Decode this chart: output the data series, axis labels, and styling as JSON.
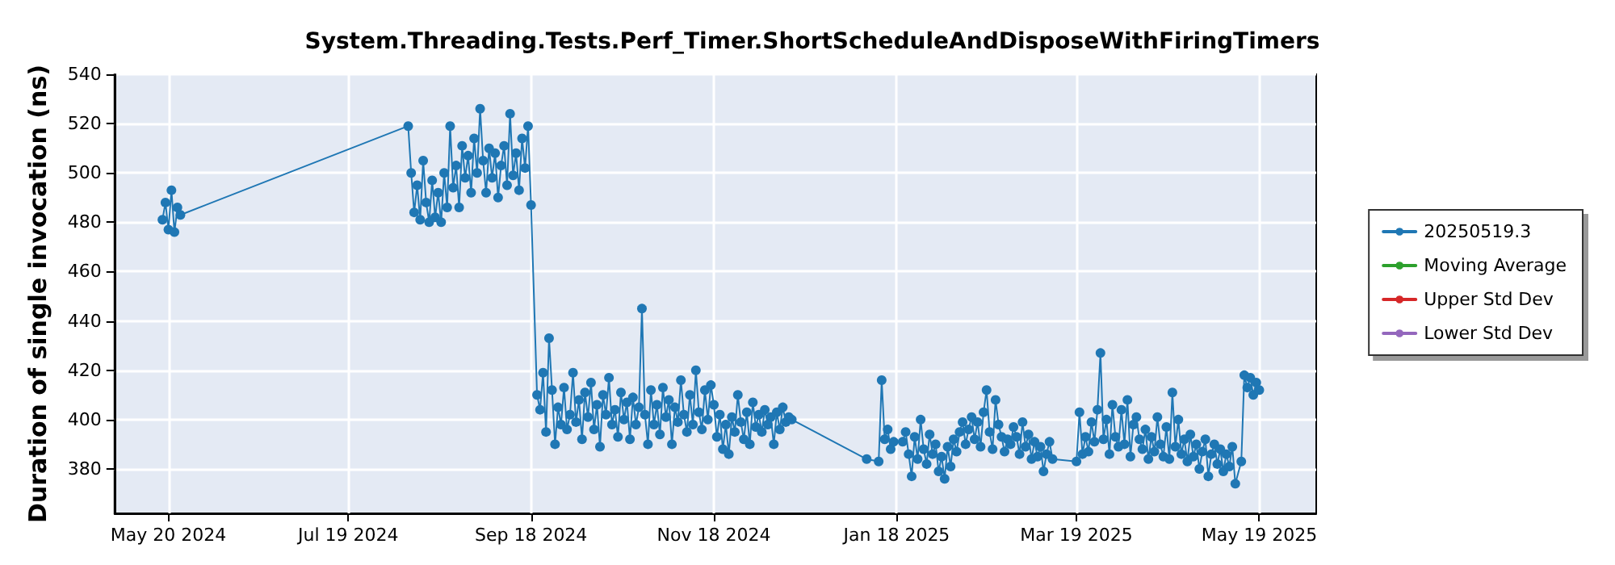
{
  "chart_data": {
    "type": "line",
    "title": "System.Threading.Tests.Perf_Timer.ShortScheduleAndDisposeWithFiringTimers",
    "ylabel": "Duration of single invocation (ns)",
    "series": [
      {
        "name": "20250519.3",
        "color": "#1f77b4",
        "x": [
          "2024-05-18",
          "2024-05-19",
          "2024-05-20",
          "2024-05-21",
          "2024-05-22",
          "2024-05-23",
          "2024-05-24",
          "2024-08-08",
          "2024-08-09",
          "2024-08-10",
          "2024-08-11",
          "2024-08-12",
          "2024-08-13",
          "2024-08-14",
          "2024-08-15",
          "2024-08-16",
          "2024-08-17",
          "2024-08-18",
          "2024-08-19",
          "2024-08-20",
          "2024-08-21",
          "2024-08-22",
          "2024-08-23",
          "2024-08-24",
          "2024-08-25",
          "2024-08-26",
          "2024-08-27",
          "2024-08-28",
          "2024-08-29",
          "2024-08-30",
          "2024-08-31",
          "2024-09-01",
          "2024-09-02",
          "2024-09-03",
          "2024-09-04",
          "2024-09-05",
          "2024-09-06",
          "2024-09-07",
          "2024-09-08",
          "2024-09-09",
          "2024-09-10",
          "2024-09-11",
          "2024-09-12",
          "2024-09-13",
          "2024-09-14",
          "2024-09-15",
          "2024-09-16",
          "2024-09-17",
          "2024-09-18",
          "2024-09-20",
          "2024-09-21",
          "2024-09-22",
          "2024-09-23",
          "2024-09-24",
          "2024-09-25",
          "2024-09-26",
          "2024-09-27",
          "2024-09-28",
          "2024-09-29",
          "2024-09-30",
          "2024-10-01",
          "2024-10-02",
          "2024-10-03",
          "2024-10-04",
          "2024-10-05",
          "2024-10-06",
          "2024-10-07",
          "2024-10-08",
          "2024-10-09",
          "2024-10-10",
          "2024-10-11",
          "2024-10-12",
          "2024-10-13",
          "2024-10-14",
          "2024-10-15",
          "2024-10-16",
          "2024-10-17",
          "2024-10-18",
          "2024-10-19",
          "2024-10-20",
          "2024-10-21",
          "2024-10-22",
          "2024-10-23",
          "2024-10-24",
          "2024-10-25",
          "2024-10-26",
          "2024-10-27",
          "2024-10-28",
          "2024-10-29",
          "2024-10-30",
          "2024-10-31",
          "2024-11-01",
          "2024-11-02",
          "2024-11-03",
          "2024-11-04",
          "2024-11-05",
          "2024-11-06",
          "2024-11-07",
          "2024-11-08",
          "2024-11-09",
          "2024-11-10",
          "2024-11-11",
          "2024-11-12",
          "2024-11-13",
          "2024-11-14",
          "2024-11-15",
          "2024-11-16",
          "2024-11-17",
          "2024-11-18",
          "2024-11-19",
          "2024-11-20",
          "2024-11-21",
          "2024-11-22",
          "2024-11-23",
          "2024-11-24",
          "2024-11-25",
          "2024-11-26",
          "2024-11-27",
          "2024-11-28",
          "2024-11-29",
          "2024-11-30",
          "2024-12-01",
          "2024-12-02",
          "2024-12-03",
          "2024-12-04",
          "2024-12-05",
          "2024-12-06",
          "2024-12-07",
          "2024-12-08",
          "2024-12-09",
          "2024-12-10",
          "2024-12-11",
          "2024-12-12",
          "2024-12-13",
          "2024-12-14",
          "2025-01-08",
          "2025-01-12",
          "2025-01-13",
          "2025-01-14",
          "2025-01-15",
          "2025-01-16",
          "2025-01-17",
          "2025-01-20",
          "2025-01-21",
          "2025-01-22",
          "2025-01-23",
          "2025-01-24",
          "2025-01-25",
          "2025-01-26",
          "2025-01-27",
          "2025-01-28",
          "2025-01-29",
          "2025-01-30",
          "2025-01-31",
          "2025-02-01",
          "2025-02-02",
          "2025-02-03",
          "2025-02-04",
          "2025-02-05",
          "2025-02-06",
          "2025-02-07",
          "2025-02-08",
          "2025-02-09",
          "2025-02-10",
          "2025-02-11",
          "2025-02-12",
          "2025-02-13",
          "2025-02-14",
          "2025-02-15",
          "2025-02-16",
          "2025-02-17",
          "2025-02-18",
          "2025-02-19",
          "2025-02-20",
          "2025-02-21",
          "2025-02-22",
          "2025-02-23",
          "2025-02-24",
          "2025-02-25",
          "2025-02-26",
          "2025-02-27",
          "2025-02-28",
          "2025-03-01",
          "2025-03-02",
          "2025-03-03",
          "2025-03-04",
          "2025-03-05",
          "2025-03-06",
          "2025-03-07",
          "2025-03-08",
          "2025-03-09",
          "2025-03-10",
          "2025-03-11",
          "2025-03-19",
          "2025-03-20",
          "2025-03-21",
          "2025-03-22",
          "2025-03-23",
          "2025-03-24",
          "2025-03-25",
          "2025-03-26",
          "2025-03-27",
          "2025-03-28",
          "2025-03-29",
          "2025-03-30",
          "2025-03-31",
          "2025-04-01",
          "2025-04-02",
          "2025-04-03",
          "2025-04-04",
          "2025-04-05",
          "2025-04-06",
          "2025-04-07",
          "2025-04-08",
          "2025-04-09",
          "2025-04-10",
          "2025-04-11",
          "2025-04-12",
          "2025-04-13",
          "2025-04-14",
          "2025-04-15",
          "2025-04-16",
          "2025-04-17",
          "2025-04-18",
          "2025-04-19",
          "2025-04-20",
          "2025-04-21",
          "2025-04-22",
          "2025-04-23",
          "2025-04-24",
          "2025-04-25",
          "2025-04-26",
          "2025-04-27",
          "2025-04-28",
          "2025-04-29",
          "2025-04-30",
          "2025-05-01",
          "2025-05-02",
          "2025-05-03",
          "2025-05-04",
          "2025-05-05",
          "2025-05-06",
          "2025-05-07",
          "2025-05-08",
          "2025-05-09",
          "2025-05-10",
          "2025-05-11",
          "2025-05-13",
          "2025-05-14",
          "2025-05-15",
          "2025-05-16",
          "2025-05-17",
          "2025-05-18",
          "2025-05-19"
        ],
        "values": [
          481,
          488,
          477,
          493,
          476,
          486,
          483,
          519,
          500,
          484,
          495,
          481,
          505,
          488,
          480,
          497,
          482,
          492,
          480,
          500,
          486,
          519,
          494,
          503,
          486,
          511,
          498,
          507,
          492,
          514,
          500,
          526,
          505,
          492,
          510,
          498,
          508,
          490,
          503,
          511,
          495,
          524,
          499,
          508,
          493,
          514,
          502,
          519,
          487,
          410,
          404,
          419,
          395,
          433,
          412,
          390,
          405,
          398,
          413,
          396,
          402,
          419,
          399,
          408,
          392,
          411,
          401,
          415,
          396,
          406,
          389,
          410,
          402,
          417,
          398,
          404,
          393,
          411,
          400,
          407,
          392,
          409,
          398,
          405,
          445,
          402,
          390,
          412,
          398,
          406,
          394,
          413,
          401,
          408,
          390,
          405,
          399,
          416,
          402,
          395,
          410,
          398,
          420,
          403,
          396,
          412,
          400,
          414,
          406,
          393,
          402,
          388,
          398,
          386,
          401,
          395,
          410,
          399,
          392,
          403,
          390,
          407,
          397,
          402,
          395,
          404,
          398,
          401,
          390,
          403,
          396,
          405,
          399,
          401,
          400,
          384,
          383,
          416,
          392,
          396,
          388,
          391,
          391,
          395,
          386,
          377,
          393,
          384,
          400,
          388,
          382,
          394,
          386,
          390,
          379,
          385,
          376,
          389,
          381,
          392,
          387,
          395,
          399,
          390,
          396,
          401,
          392,
          399,
          389,
          403,
          412,
          395,
          388,
          408,
          398,
          393,
          387,
          392,
          390,
          397,
          393,
          386,
          399,
          389,
          394,
          384,
          391,
          385,
          389,
          379,
          386,
          391,
          384,
          383,
          403,
          386,
          393,
          387,
          399,
          391,
          404,
          427,
          392,
          400,
          386,
          406,
          393,
          389,
          404,
          390,
          408,
          385,
          398,
          401,
          392,
          388,
          396,
          384,
          393,
          387,
          401,
          390,
          385,
          397,
          384,
          411,
          389,
          400,
          386,
          392,
          383,
          394,
          385,
          390,
          380,
          387,
          392,
          377,
          386,
          390,
          382,
          388,
          379,
          386,
          381,
          389,
          374,
          383,
          418,
          413,
          417,
          410,
          415,
          412
        ]
      },
      {
        "name": "Moving Average",
        "color": "#2ca02c"
      },
      {
        "name": "Upper Std Dev",
        "color": "#d62728"
      },
      {
        "name": "Lower Std Dev",
        "color": "#9467bd"
      }
    ],
    "xlim": [
      "2024-05-02",
      "2025-06-07"
    ],
    "xticks": [
      {
        "value": "2024-05-20",
        "label": "May 20 2024"
      },
      {
        "value": "2024-07-19",
        "label": "Jul 19 2024"
      },
      {
        "value": "2024-09-18",
        "label": "Sep 18 2024"
      },
      {
        "value": "2024-11-18",
        "label": "Nov 18 2024"
      },
      {
        "value": "2025-01-18",
        "label": "Jan 18 2025"
      },
      {
        "value": "2025-03-19",
        "label": "Mar 19 2025"
      },
      {
        "value": "2025-05-19",
        "label": "May 19 2025"
      }
    ],
    "ylim": [
      362,
      540
    ],
    "yticks": [
      380,
      400,
      420,
      440,
      460,
      480,
      500,
      520,
      540
    ],
    "grid": true,
    "legend": "right",
    "marker": "circle",
    "line_style": "solid"
  }
}
